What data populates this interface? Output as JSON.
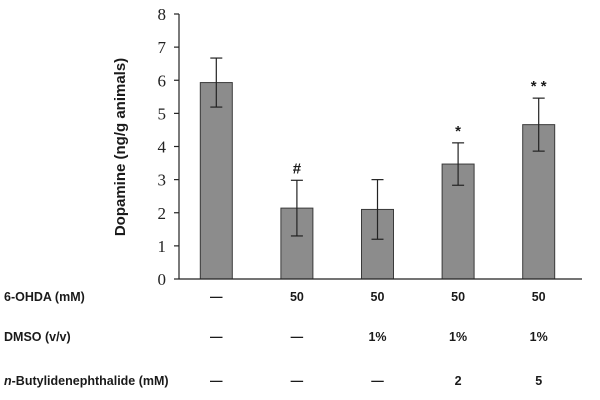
{
  "chart_data": {
    "type": "bar",
    "title": "",
    "xlabel": "",
    "ylabel": "Dopamine  (ng/g animals)",
    "ylim": [
      0,
      8
    ],
    "yticks": [
      0,
      1,
      2,
      3,
      4,
      5,
      6,
      7,
      8
    ],
    "grid": false,
    "bar_color": "#8c8c8c",
    "values": [
      5.93,
      2.14,
      2.1,
      3.47,
      4.66
    ],
    "errors": [
      0.74,
      0.84,
      0.9,
      0.64,
      0.8
    ],
    "significance": [
      "",
      "#",
      "",
      "*",
      "* *"
    ],
    "conditions": [
      {
        "label": "6-OHDA (mM)",
        "values": [
          "—",
          "50",
          "50",
          "50",
          "50"
        ]
      },
      {
        "label": "DMSO (v/v)",
        "values": [
          "—",
          "—",
          "1%",
          "1%",
          "1%"
        ]
      },
      {
        "label_prefix": "n",
        "label": "-Butylidenephthalide (mM)",
        "values": [
          "—",
          "—",
          "—",
          "2",
          "5"
        ]
      }
    ]
  }
}
